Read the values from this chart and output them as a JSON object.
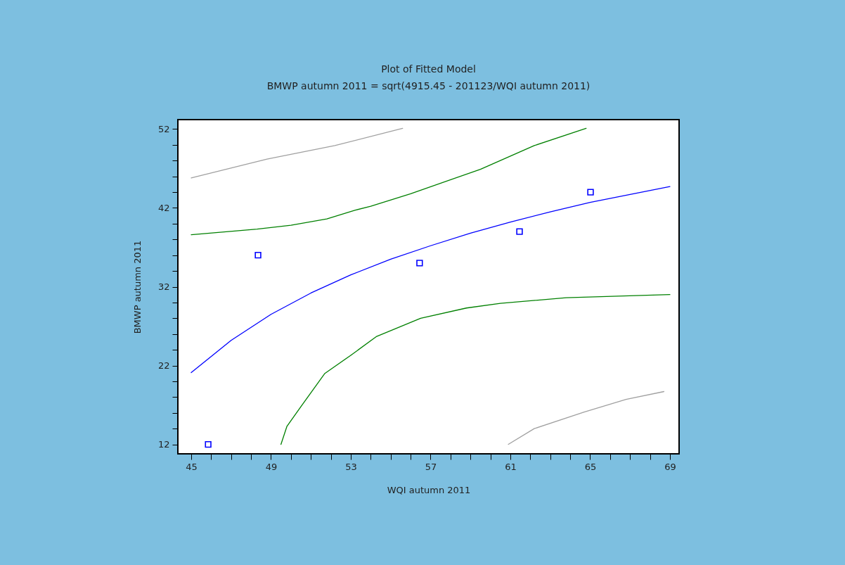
{
  "chart_data": {
    "type": "line",
    "title": "Plot of Fitted Model",
    "subtitle": "BMWP autumn 2011 = sqrt(4915.45 - 201123/WQI autumn 2011)",
    "xlabel": "WQI autumn 2011",
    "ylabel": "BMWP autumn 2011",
    "xlim": [
      44.33,
      69.46
    ],
    "ylim": [
      10.8,
      53.2
    ],
    "xticks": [
      45,
      {
        "value": 46,
        "label": null
      },
      {
        "value": 47,
        "label": null
      },
      {
        "value": 48,
        "label": null
      },
      49,
      {
        "value": 50,
        "label": null
      },
      {
        "value": 51,
        "label": null
      },
      {
        "value": 52,
        "label": null
      },
      53,
      {
        "value": 54,
        "label": null
      },
      {
        "value": 55,
        "label": null
      },
      {
        "value": 56,
        "label": null
      },
      57,
      {
        "value": 58,
        "label": null
      },
      {
        "value": 59,
        "label": null
      },
      {
        "value": 60,
        "label": null
      },
      61,
      {
        "value": 62,
        "label": null
      },
      {
        "value": 63,
        "label": null
      },
      {
        "value": 64,
        "label": null
      },
      65,
      {
        "value": 66,
        "label": null
      },
      {
        "value": 67,
        "label": null
      },
      {
        "value": 68,
        "label": null
      },
      69
    ],
    "yticks": [
      12,
      {
        "value": 14,
        "label": null
      },
      {
        "value": 16,
        "label": null
      },
      {
        "value": 18,
        "label": null
      },
      {
        "value": 20,
        "label": null
      },
      22,
      {
        "value": 24,
        "label": null
      },
      {
        "value": 26,
        "label": null
      },
      {
        "value": 28,
        "label": null
      },
      {
        "value": 30,
        "label": null
      },
      32,
      {
        "value": 34,
        "label": null
      },
      {
        "value": 36,
        "label": null
      },
      {
        "value": 38,
        "label": null
      },
      {
        "value": 40,
        "label": null
      },
      42,
      {
        "value": 44,
        "label": null
      },
      {
        "value": 46,
        "label": null
      },
      {
        "value": 48,
        "label": null
      },
      {
        "value": 50,
        "label": null
      },
      52
    ],
    "grid": false,
    "line_style": "solid",
    "series": [
      {
        "color": "#0000ff",
        "x": [
          45,
          47,
          49,
          51,
          53,
          55,
          57,
          59,
          61,
          63,
          65,
          67,
          69
        ],
        "values": [
          21.1,
          25.2,
          28.5,
          31.2,
          33.5,
          35.5,
          37.2,
          38.8,
          40.2,
          41.5,
          42.7,
          43.7,
          44.7
        ]
      },
      {
        "color": "#008000",
        "x": [
          45,
          48.3,
          50,
          51.8,
          53.2,
          54,
          56,
          59.5,
          62.2,
          64.8
        ],
        "values": [
          38.6,
          39.3,
          39.8,
          40.6,
          41.7,
          42.2,
          43.8,
          46.9,
          49.9,
          52.1
        ]
      },
      {
        "color": "#008000",
        "x": [
          49.5,
          49.8,
          50.5,
          51.7,
          53,
          54.3,
          56.5,
          58.8,
          60.5,
          63.8,
          69
        ],
        "values": [
          12,
          14.3,
          16.8,
          21,
          23.3,
          25.7,
          28,
          29.3,
          29.9,
          30.6,
          31
        ]
      },
      {
        "color": "#a0a0a0",
        "x": [
          45,
          48.8,
          52.2,
          55.6
        ],
        "values": [
          45.8,
          48.2,
          49.9,
          52.1
        ]
      },
      {
        "color": "#a0a0a0",
        "x": [
          60.9,
          62.2,
          64.7,
          66.8,
          68.7
        ],
        "values": [
          12,
          14,
          16.1,
          17.7,
          18.7
        ]
      },
      {
        "type": "scatter",
        "color": "#0000ff",
        "marker": "square",
        "x": [
          45.85,
          48.35,
          56.45,
          61.46,
          65.02
        ],
        "values": [
          12,
          36,
          35,
          39,
          44
        ]
      }
    ]
  }
}
